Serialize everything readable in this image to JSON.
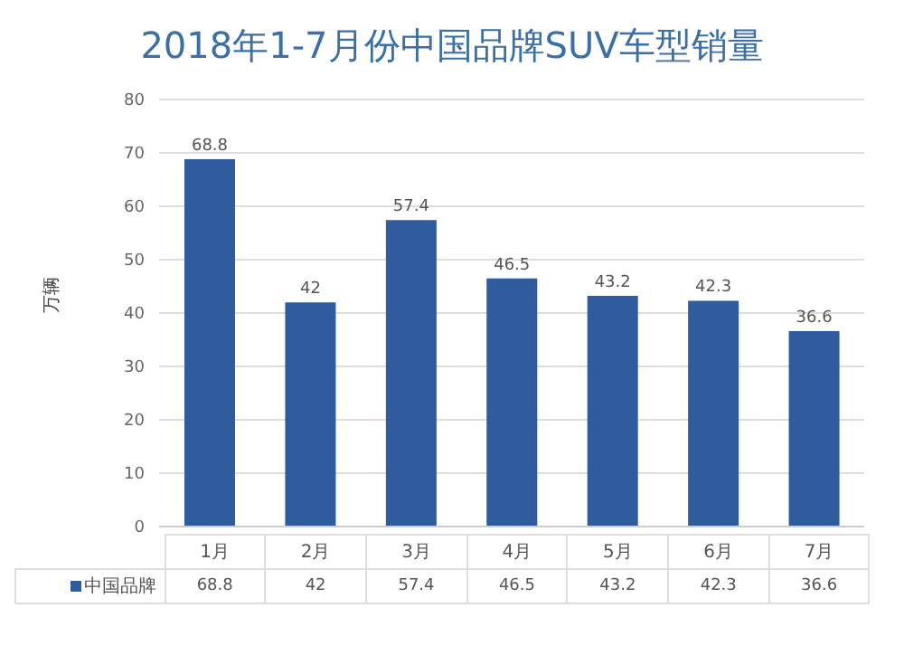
{
  "chart_data": {
    "type": "bar",
    "title": "2018年1-7月份中国品牌SUV车型销量",
    "ylabel": "万辆",
    "categories": [
      "1月",
      "2月",
      "3月",
      "4月",
      "5月",
      "6月",
      "7月"
    ],
    "series": [
      {
        "name": "中国品牌",
        "color": "#2e5c9e",
        "values": [
          68.8,
          42,
          57.4,
          46.5,
          43.2,
          42.3,
          36.6
        ],
        "value_labels": [
          "68.8",
          "42",
          "57.4",
          "46.5",
          "43.2",
          "42.3",
          "36.6"
        ]
      }
    ],
    "ylim": [
      0,
      80
    ],
    "yticks": [
      0,
      10,
      20,
      30,
      40,
      50,
      60,
      70,
      80
    ],
    "grid": "y",
    "legend": "bottom",
    "annotations": [
      "68.8",
      "42",
      "57.4",
      "46.5",
      "43.2",
      "42.3",
      "36.6"
    ]
  }
}
